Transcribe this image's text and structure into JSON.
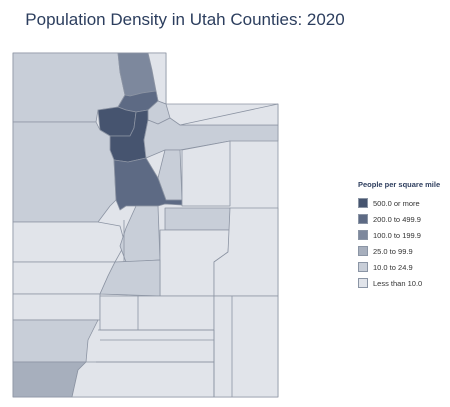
{
  "title": "Population Density in Utah Counties: 2020",
  "legend": {
    "title": "People per square mile",
    "items": [
      {
        "label": "500.0 or more",
        "color": "#46546f"
      },
      {
        "label": "200.0 to 499.9",
        "color": "#5d6a84"
      },
      {
        "label": "100.0 to 199.9",
        "color": "#7d889d"
      },
      {
        "label": "25.0 to 99.9",
        "color": "#a7afbd"
      },
      {
        "label": "10.0 to 24.9",
        "color": "#c8ced8"
      },
      {
        "label": "Less than 10.0",
        "color": "#e1e4ea"
      }
    ]
  },
  "map": {
    "region": "Utah",
    "border_color": "#8c94a3"
  }
}
